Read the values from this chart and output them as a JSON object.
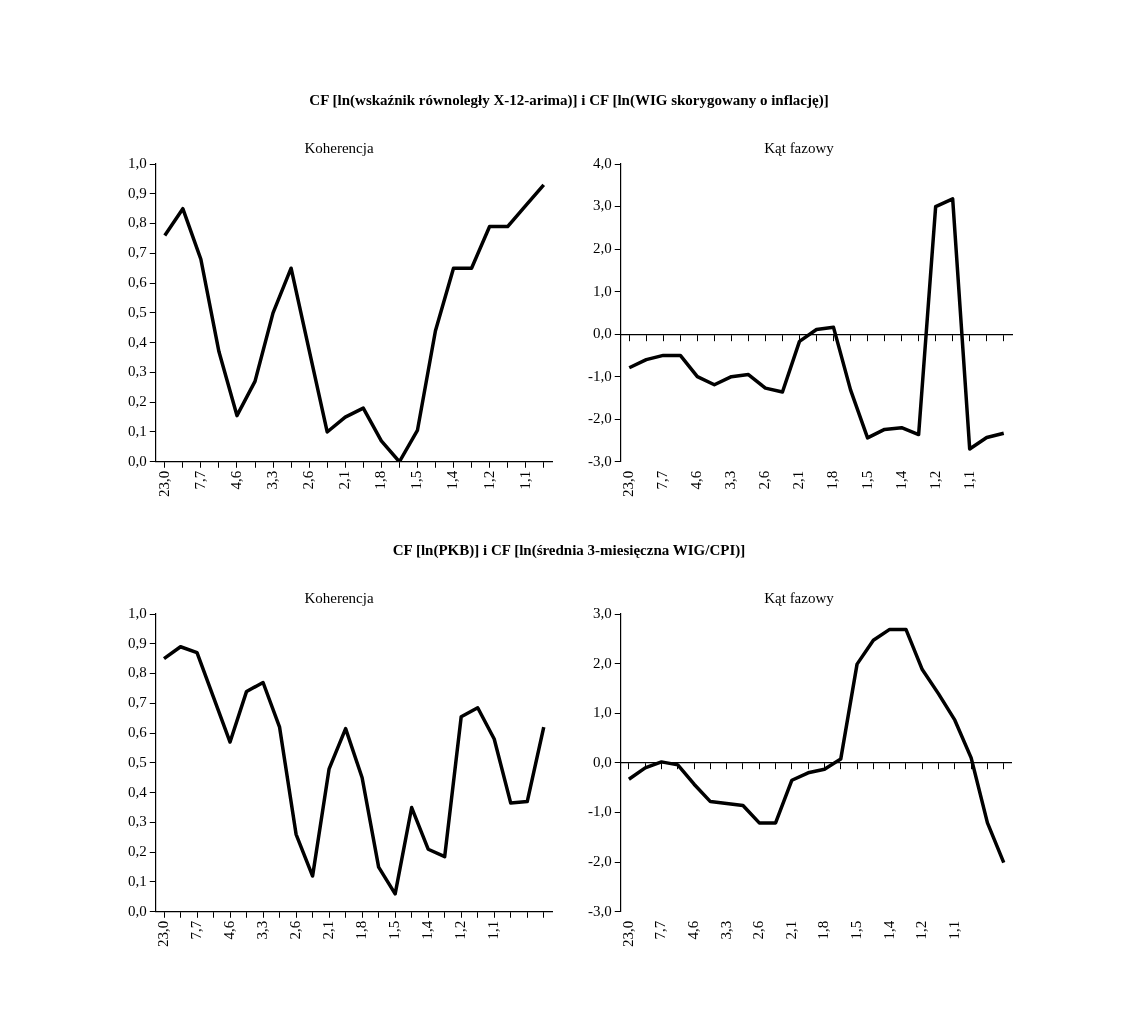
{
  "chart_data": [
    {
      "type": "line",
      "title": "Koherencja",
      "annotations": [
        "CF [ln(wskaźnik równoległy X-12-arima)] i CF [ln(WIG skorygowany o inflację)]"
      ],
      "marker": "none",
      "color": "#000000",
      "categories": [
        "23,0",
        null,
        "7,7",
        null,
        "4,6",
        null,
        "3,3",
        null,
        "2,6",
        null,
        "2,1",
        null,
        "1,8",
        null,
        "1,5",
        null,
        "1,4",
        null,
        "1,2",
        null,
        "1,1",
        null
      ],
      "values": [
        0.76,
        0.85,
        0.68,
        0.37,
        0.155,
        0.27,
        0.5,
        0.65,
        0.375,
        0.1,
        0.15,
        0.18,
        0.07,
        0.0,
        0.105,
        0.44,
        0.65,
        0.65,
        0.79,
        0.79,
        0.86,
        0.93
      ],
      "ylim": [
        0,
        1
      ],
      "yticks": [
        {
          "value": 0,
          "label": "0,0"
        },
        {
          "value": 0.1,
          "label": "0,1"
        },
        {
          "value": 0.2,
          "label": "0,2"
        },
        {
          "value": 0.3,
          "label": "0,3"
        },
        {
          "value": 0.4,
          "label": "0,4"
        },
        {
          "value": 0.5,
          "label": "0,5"
        },
        {
          "value": 0.6,
          "label": "0,6"
        },
        {
          "value": 0.7,
          "label": "0,7"
        },
        {
          "value": 0.8,
          "label": "0,8"
        },
        {
          "value": 0.9,
          "label": "0,9"
        },
        {
          "value": 1,
          "label": "1,0"
        }
      ]
    },
    {
      "type": "line",
      "title": "Kąt fazowy",
      "marker": "none",
      "color": "#000000",
      "categories": [
        "23,0",
        null,
        "7,7",
        null,
        "4,6",
        null,
        "3,3",
        null,
        "2,6",
        null,
        "2,1",
        null,
        "1,8",
        null,
        "1,5",
        null,
        "1,4",
        null,
        "1,2",
        null,
        "1,1",
        null,
        null
      ],
      "values": [
        -0.79,
        -0.6,
        -0.5,
        -0.5,
        -1.0,
        -1.19,
        -1.0,
        -0.95,
        -1.27,
        -1.36,
        -0.17,
        0.11,
        0.16,
        -1.31,
        -2.44,
        -2.24,
        -2.2,
        -2.36,
        3.0,
        3.18,
        -2.7,
        -2.43,
        -2.33
      ],
      "ylim": [
        -3,
        4
      ],
      "yticks": [
        {
          "value": -3,
          "label": "-3,0"
        },
        {
          "value": -2,
          "label": "-2,0"
        },
        {
          "value": -1,
          "label": "-1,0"
        },
        {
          "value": 0,
          "label": "0,0"
        },
        {
          "value": 1,
          "label": "1,0"
        },
        {
          "value": 2,
          "label": "2,0"
        },
        {
          "value": 3,
          "label": "3,0"
        },
        {
          "value": 4,
          "label": "4,0"
        }
      ]
    },
    {
      "type": "line",
      "title": "Koherencja",
      "annotations": [
        "CF [ln(PKB)] i CF [ln(średnia 3-miesięczna WIG/CPI)]"
      ],
      "marker": "none",
      "color": "#000000",
      "categories": [
        "23,0",
        null,
        "7,7",
        null,
        "4,6",
        null,
        "3,3",
        null,
        "2,6",
        null,
        "2,1",
        null,
        "1,8",
        null,
        "1,5",
        null,
        "1,4",
        null,
        "1,2",
        null,
        "1,1",
        null,
        null,
        null
      ],
      "values": [
        0.85,
        0.89,
        0.87,
        0.72,
        0.57,
        0.74,
        0.77,
        0.62,
        0.26,
        0.12,
        0.48,
        0.615,
        0.45,
        0.15,
        0.06,
        0.35,
        0.21,
        0.185,
        0.655,
        0.685,
        0.58,
        0.365,
        0.37,
        0.62
      ],
      "ylim": [
        0,
        1
      ],
      "yticks": [
        {
          "value": 0,
          "label": "0,0"
        },
        {
          "value": 0.1,
          "label": "0,1"
        },
        {
          "value": 0.2,
          "label": "0,2"
        },
        {
          "value": 0.3,
          "label": "0,3"
        },
        {
          "value": 0.4,
          "label": "0,4"
        },
        {
          "value": 0.5,
          "label": "0,5"
        },
        {
          "value": 0.6,
          "label": "0,6"
        },
        {
          "value": 0.7,
          "label": "0,7"
        },
        {
          "value": 0.8,
          "label": "0,8"
        },
        {
          "value": 0.9,
          "label": "0,9"
        },
        {
          "value": 1,
          "label": "1,0"
        }
      ]
    },
    {
      "type": "line",
      "title": "Kąt fazowy",
      "marker": "none",
      "color": "#000000",
      "categories": [
        "23,0",
        null,
        "7,7",
        null,
        "4,6",
        null,
        "3,3",
        null,
        "2,6",
        null,
        "2,1",
        null,
        "1,8",
        null,
        "1,5",
        null,
        "1,4",
        null,
        "1,2",
        null,
        "1,1",
        null,
        null,
        null
      ],
      "values": [
        -0.33,
        -0.1,
        0.02,
        -0.04,
        -0.43,
        -0.78,
        -0.82,
        -0.86,
        -1.21,
        -1.21,
        -0.35,
        -0.2,
        -0.13,
        0.08,
        1.99,
        2.47,
        2.69,
        2.69,
        1.88,
        1.39,
        0.86,
        0.1,
        -1.21,
        -2.01
      ],
      "ylim": [
        -3,
        3
      ],
      "yticks": [
        {
          "value": -3,
          "label": "-3,0"
        },
        {
          "value": -2,
          "label": "-2,0"
        },
        {
          "value": -1,
          "label": "-1,0"
        },
        {
          "value": 0,
          "label": "0,0"
        },
        {
          "value": 1,
          "label": "1,0"
        },
        {
          "value": 2,
          "label": "2,0"
        },
        {
          "value": 3,
          "label": "3,0"
        }
      ]
    }
  ]
}
